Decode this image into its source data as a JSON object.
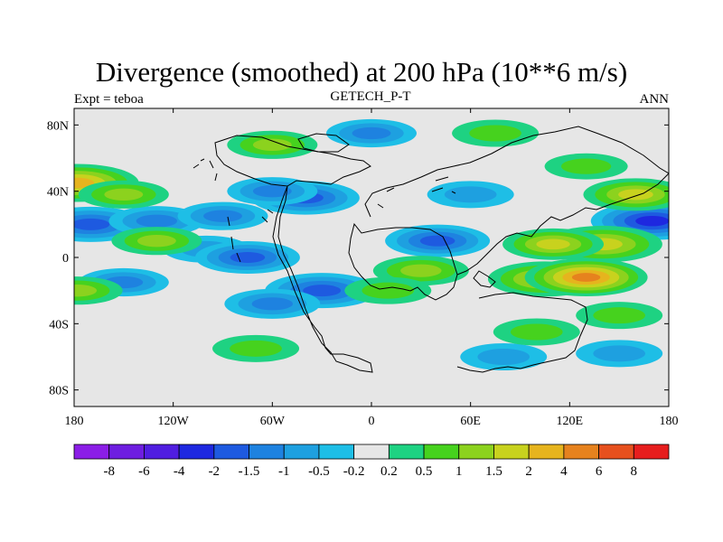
{
  "title": "Divergence (smoothed) at 200 hPa (10**6 m/s)",
  "subtitle_left": "Expt = teboa",
  "subtitle_center": "GETECH_P-T",
  "subtitle_right": "ANN",
  "colors": {
    "land_outline": "#000000",
    "neutral": "#e6e6e6"
  },
  "chart_data": {
    "type": "heatmap",
    "projection": "cylindrical equidistant",
    "variable": "Divergence (smoothed) at 200 hPa",
    "units": "10**6 m/s",
    "x_range": [
      -180,
      180
    ],
    "y_range": [
      -90,
      90
    ],
    "x_ticks": [
      {
        "value": -180,
        "label": "180"
      },
      {
        "value": -120,
        "label": "120W"
      },
      {
        "value": -60,
        "label": "60W"
      },
      {
        "value": 0,
        "label": "0"
      },
      {
        "value": 60,
        "label": "60E"
      },
      {
        "value": 120,
        "label": "120E"
      },
      {
        "value": 180,
        "label": "180"
      }
    ],
    "y_ticks": [
      {
        "value": 80,
        "label": "80N"
      },
      {
        "value": 40,
        "label": "40N"
      },
      {
        "value": 0,
        "label": "0"
      },
      {
        "value": -40,
        "label": "40S"
      },
      {
        "value": -80,
        "label": "80S"
      }
    ],
    "colorbar": {
      "levels": [
        "-8",
        "-6",
        "-4",
        "-2",
        "-1.5",
        "-1",
        "-0.5",
        "-0.2",
        "0.2",
        "0.5",
        "1",
        "1.5",
        "2",
        "4",
        "6",
        "8"
      ],
      "level_values": [
        -8,
        -6,
        -4,
        -2,
        -1.5,
        -1,
        -0.5,
        -0.2,
        0.2,
        0.5,
        1,
        1.5,
        2,
        4,
        6,
        8
      ],
      "colors": [
        "#8b1ee6",
        "#6e1ee0",
        "#501ee0",
        "#1e28e0",
        "#1e5ae0",
        "#1e82e0",
        "#1ea0e0",
        "#1ebee6",
        "#e6e6e6",
        "#1ed282",
        "#46d21e",
        "#8cd21e",
        "#c8d21e",
        "#e6b41e",
        "#e6821e",
        "#e6501e",
        "#e61e1e"
      ]
    },
    "features": [
      {
        "lon": -170,
        "lat": 20,
        "value": -2.5
      },
      {
        "lon": -130,
        "lat": 22,
        "value": -1.5
      },
      {
        "lon": -90,
        "lat": 25,
        "value": -1.2
      },
      {
        "lon": -40,
        "lat": 36,
        "value": -2.2
      },
      {
        "lon": -60,
        "lat": 40,
        "value": -1.2
      },
      {
        "lon": -100,
        "lat": 5,
        "value": -1.0
      },
      {
        "lon": -75,
        "lat": 0,
        "value": -2.0
      },
      {
        "lon": -150,
        "lat": -15,
        "value": -1.2
      },
      {
        "lon": -30,
        "lat": -20,
        "value": -2.5
      },
      {
        "lon": -60,
        "lat": -28,
        "value": -1.5
      },
      {
        "lon": 40,
        "lat": 10,
        "value": -2.0
      },
      {
        "lon": 60,
        "lat": 38,
        "value": -1.0
      },
      {
        "lon": 0,
        "lat": 75,
        "value": -1.2
      },
      {
        "lon": 80,
        "lat": -60,
        "value": -1.0
      },
      {
        "lon": 150,
        "lat": -58,
        "value": -1.0
      },
      {
        "lon": 170,
        "lat": 22,
        "value": -3.5
      },
      {
        "lon": -178,
        "lat": 45,
        "value": 3.0
      },
      {
        "lon": -178,
        "lat": -20,
        "value": 1.2
      },
      {
        "lon": -150,
        "lat": 38,
        "value": 1.2
      },
      {
        "lon": -130,
        "lat": 10,
        "value": 1.2
      },
      {
        "lon": -60,
        "lat": 68,
        "value": 1.2
      },
      {
        "lon": 140,
        "lat": 8,
        "value": 2.8
      },
      {
        "lon": 110,
        "lat": 8,
        "value": 1.8
      },
      {
        "lon": 105,
        "lat": -13,
        "value": 2.5
      },
      {
        "lon": 130,
        "lat": -12,
        "value": 5.0
      },
      {
        "lon": 160,
        "lat": 38,
        "value": 2.0
      },
      {
        "lon": 30,
        "lat": -8,
        "value": 1.5
      },
      {
        "lon": 10,
        "lat": -20,
        "value": 1.0
      },
      {
        "lon": 75,
        "lat": 75,
        "value": 1.0
      },
      {
        "lon": 130,
        "lat": 55,
        "value": 0.8
      },
      {
        "lon": -70,
        "lat": -55,
        "value": 1.0
      },
      {
        "lon": 100,
        "lat": -45,
        "value": 1.0
      },
      {
        "lon": 150,
        "lat": -35,
        "value": 1.0
      }
    ]
  }
}
